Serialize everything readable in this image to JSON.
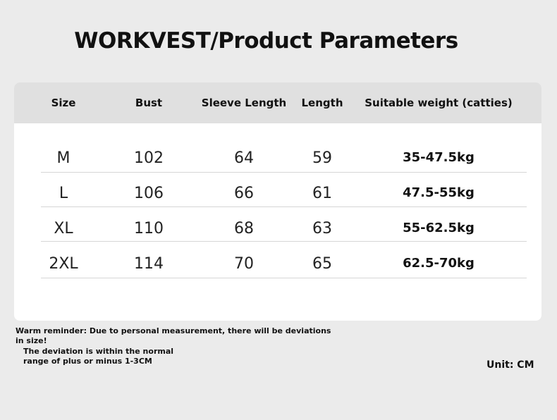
{
  "header": {
    "title": "WORKVEST/Product Parameters"
  },
  "table": {
    "columns": [
      "Size",
      "Bust",
      "Sleeve Length",
      "Length",
      "Suitable weight (catties)"
    ],
    "rows": [
      [
        "M",
        "102",
        "64",
        "59",
        "35-47.5kg"
      ],
      [
        "L",
        "106",
        "66",
        "61",
        "47.5-55kg"
      ],
      [
        "XL",
        "110",
        "68",
        "63",
        "55-62.5kg"
      ],
      [
        "2XL",
        "114",
        "70",
        "65",
        "62.5-70kg"
      ]
    ]
  },
  "notes": {
    "reminder": [
      "Warm reminder: Due to personal measurement, there will be deviations",
      "in size!"
    ],
    "deviation": [
      "The deviation is within the normal",
      "range of plus or minus 1-3CM"
    ],
    "unit": "Unit: CM"
  }
}
